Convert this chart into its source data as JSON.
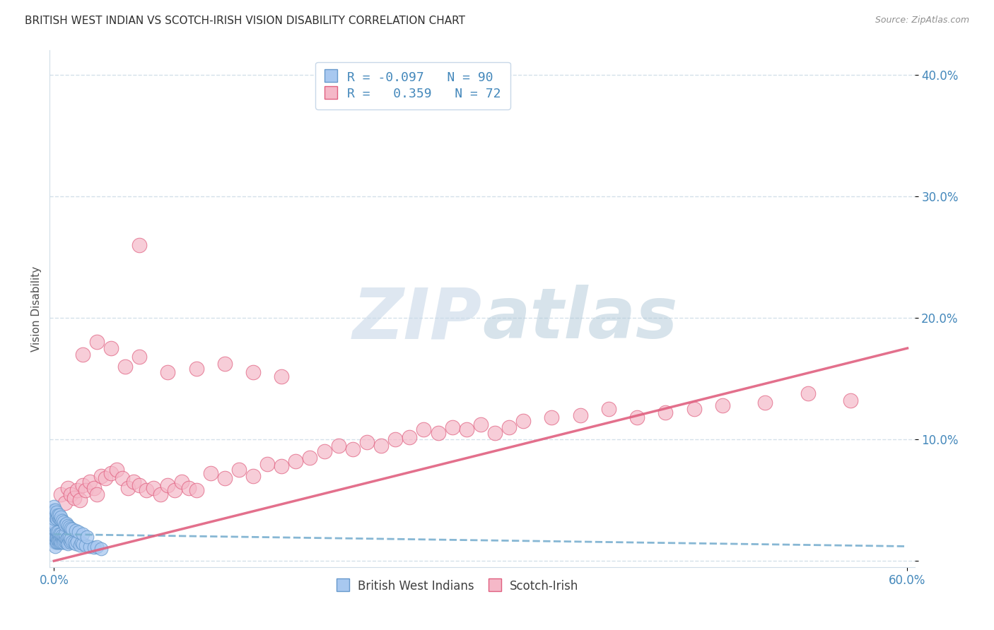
{
  "title": "BRITISH WEST INDIAN VS SCOTCH-IRISH VISION DISABILITY CORRELATION CHART",
  "source": "Source: ZipAtlas.com",
  "ylabel": "Vision Disability",
  "xlim": [
    -0.003,
    0.605
  ],
  "ylim": [
    -0.005,
    0.42
  ],
  "yticks": [
    0.0,
    0.1,
    0.2,
    0.3,
    0.4
  ],
  "ytick_labels": [
    "",
    "10.0%",
    "20.0%",
    "30.0%",
    "40.0%"
  ],
  "color_blue": "#a8c8f0",
  "color_blue_edge": "#6699cc",
  "color_blue_line": "#7ab0d0",
  "color_pink": "#f5b8c8",
  "color_pink_edge": "#e06080",
  "color_pink_line": "#e06080",
  "color_title": "#303030",
  "color_source": "#909090",
  "color_ytick": "#4488bb",
  "color_grid": "#d0dde8",
  "background_color": "#ffffff",
  "watermark_color": "#dce8f0",
  "blue_r": -0.097,
  "blue_n": 90,
  "pink_r": 0.359,
  "pink_n": 72,
  "blue_line_x0": 0.0,
  "blue_line_x1": 0.6,
  "blue_line_y0": 0.022,
  "blue_line_y1": 0.012,
  "pink_line_x0": 0.0,
  "pink_line_x1": 0.6,
  "pink_line_y0": 0.0,
  "pink_line_y1": 0.175,
  "blue_pts_x": [
    0.001,
    0.001,
    0.001,
    0.001,
    0.001,
    0.001,
    0.001,
    0.001,
    0.002,
    0.002,
    0.002,
    0.002,
    0.002,
    0.002,
    0.002,
    0.003,
    0.003,
    0.003,
    0.003,
    0.003,
    0.003,
    0.004,
    0.004,
    0.004,
    0.004,
    0.004,
    0.005,
    0.005,
    0.005,
    0.005,
    0.006,
    0.006,
    0.006,
    0.007,
    0.007,
    0.007,
    0.008,
    0.008,
    0.008,
    0.009,
    0.009,
    0.01,
    0.01,
    0.01,
    0.011,
    0.011,
    0.012,
    0.012,
    0.013,
    0.014,
    0.015,
    0.016,
    0.018,
    0.019,
    0.02,
    0.022,
    0.025,
    0.028,
    0.03,
    0.033,
    0.0,
    0.0,
    0.0,
    0.0,
    0.0,
    0.001,
    0.001,
    0.001,
    0.001,
    0.002,
    0.002,
    0.002,
    0.003,
    0.003,
    0.004,
    0.004,
    0.005,
    0.005,
    0.006,
    0.007,
    0.008,
    0.009,
    0.01,
    0.011,
    0.012,
    0.013,
    0.015,
    0.017,
    0.02,
    0.023
  ],
  "blue_pts_y": [
    0.018,
    0.022,
    0.025,
    0.015,
    0.02,
    0.028,
    0.012,
    0.03,
    0.02,
    0.018,
    0.022,
    0.016,
    0.024,
    0.015,
    0.019,
    0.018,
    0.022,
    0.015,
    0.02,
    0.017,
    0.024,
    0.018,
    0.015,
    0.02,
    0.022,
    0.017,
    0.016,
    0.019,
    0.022,
    0.015,
    0.018,
    0.021,
    0.015,
    0.017,
    0.02,
    0.015,
    0.016,
    0.019,
    0.022,
    0.015,
    0.018,
    0.016,
    0.019,
    0.014,
    0.017,
    0.02,
    0.015,
    0.018,
    0.016,
    0.015,
    0.014,
    0.016,
    0.013,
    0.015,
    0.014,
    0.013,
    0.012,
    0.011,
    0.012,
    0.01,
    0.038,
    0.042,
    0.035,
    0.04,
    0.045,
    0.036,
    0.04,
    0.038,
    0.042,
    0.038,
    0.035,
    0.04,
    0.036,
    0.038,
    0.035,
    0.038,
    0.034,
    0.036,
    0.033,
    0.032,
    0.03,
    0.031,
    0.029,
    0.028,
    0.027,
    0.026,
    0.025,
    0.024,
    0.022,
    0.02
  ],
  "pink_pts_x": [
    0.005,
    0.008,
    0.01,
    0.012,
    0.014,
    0.016,
    0.018,
    0.02,
    0.022,
    0.025,
    0.028,
    0.03,
    0.033,
    0.036,
    0.04,
    0.044,
    0.048,
    0.052,
    0.056,
    0.06,
    0.065,
    0.07,
    0.075,
    0.08,
    0.085,
    0.09,
    0.095,
    0.1,
    0.11,
    0.12,
    0.13,
    0.14,
    0.15,
    0.16,
    0.17,
    0.18,
    0.19,
    0.2,
    0.21,
    0.22,
    0.23,
    0.24,
    0.25,
    0.26,
    0.27,
    0.28,
    0.29,
    0.3,
    0.31,
    0.32,
    0.33,
    0.35,
    0.37,
    0.39,
    0.41,
    0.43,
    0.45,
    0.47,
    0.5,
    0.53,
    0.56,
    0.02,
    0.03,
    0.04,
    0.05,
    0.06,
    0.08,
    0.1,
    0.12,
    0.14,
    0.16,
    0.06
  ],
  "pink_pts_y": [
    0.055,
    0.048,
    0.06,
    0.055,
    0.052,
    0.058,
    0.05,
    0.062,
    0.058,
    0.065,
    0.06,
    0.055,
    0.07,
    0.068,
    0.072,
    0.075,
    0.068,
    0.06,
    0.065,
    0.062,
    0.058,
    0.06,
    0.055,
    0.062,
    0.058,
    0.065,
    0.06,
    0.058,
    0.072,
    0.068,
    0.075,
    0.07,
    0.08,
    0.078,
    0.082,
    0.085,
    0.09,
    0.095,
    0.092,
    0.098,
    0.095,
    0.1,
    0.102,
    0.108,
    0.105,
    0.11,
    0.108,
    0.112,
    0.105,
    0.11,
    0.115,
    0.118,
    0.12,
    0.125,
    0.118,
    0.122,
    0.125,
    0.128,
    0.13,
    0.138,
    0.132,
    0.17,
    0.18,
    0.175,
    0.16,
    0.168,
    0.155,
    0.158,
    0.162,
    0.155,
    0.152,
    0.26
  ]
}
